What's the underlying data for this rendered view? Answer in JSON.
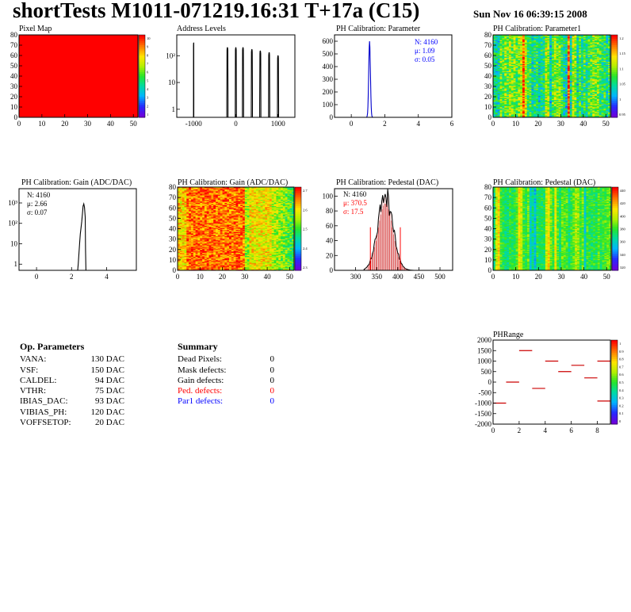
{
  "header": {
    "title": "shortTests M1011-071219.16:31 T+17a (C15)",
    "date": "Sun Nov 16 06:39:15 2008"
  },
  "chart_data": [
    {
      "id": "pixel_map",
      "type": "heatmap",
      "title": "Pixel Map",
      "xlim": [
        0,
        52
      ],
      "ylim": [
        0,
        80
      ],
      "x_ticks": [
        "0",
        "10",
        "20",
        "30",
        "40",
        "50"
      ],
      "y_ticks": [
        "0",
        "10",
        "20",
        "30",
        "40",
        "50",
        "60",
        "70",
        "80"
      ],
      "z_range": [
        0,
        10
      ],
      "z_ticks": [
        "10",
        "9",
        "8",
        "7",
        "6",
        "5",
        "4",
        "3",
        "2",
        "1"
      ],
      "values_note_uniform": 10
    },
    {
      "id": "address_levels",
      "type": "line",
      "title": "Address Levels",
      "yscale": "log",
      "x_ticks": [
        "-1000",
        "0",
        "1000"
      ],
      "y_ticks": [
        "1",
        "10",
        "10²"
      ],
      "peaks": [
        {
          "x": -1000,
          "y": 300
        },
        {
          "x": -200,
          "y": 200
        },
        {
          "x": 0,
          "y": 200
        },
        {
          "x": 170,
          "y": 200
        },
        {
          "x": 380,
          "y": 170
        },
        {
          "x": 580,
          "y": 150
        },
        {
          "x": 790,
          "y": 130
        },
        {
          "x": 1000,
          "y": 100
        }
      ]
    },
    {
      "id": "ph_cal_param",
      "type": "bar",
      "title": "PH Calibration: Parameter",
      "xlim": [
        -1,
        6
      ],
      "ylim": [
        0,
        650
      ],
      "x_ticks": [
        "0",
        "2",
        "4",
        "6"
      ],
      "y_ticks": [
        "0",
        "100",
        "200",
        "300",
        "400",
        "500",
        "600"
      ],
      "stats": [
        "N: 4160",
        "μ: 1.09",
        "σ: 0.05"
      ]
    },
    {
      "id": "ph_cal_param1",
      "type": "heatmap",
      "title": "PH Calibration: Parameter1",
      "xlim": [
        0,
        52
      ],
      "ylim": [
        0,
        80
      ],
      "x_ticks": [
        "0",
        "10",
        "20",
        "30",
        "40",
        "50"
      ],
      "y_ticks": [
        "0",
        "10",
        "20",
        "30",
        "40",
        "50",
        "60",
        "70",
        "80"
      ],
      "z_ticks": [
        "1.2",
        "1.15",
        "1.1",
        "1.05",
        "1",
        "0.95"
      ]
    },
    {
      "id": "gain_hist",
      "type": "bar",
      "title": "PH Calibration: Gain (ADC/DAC)",
      "yscale": "log",
      "x_ticks": [
        "0",
        "2",
        "4"
      ],
      "y_ticks": [
        "1",
        "10",
        "10²",
        "10³"
      ],
      "stats": [
        "N: 4160",
        "μ: 2.66",
        "σ: 0.07"
      ]
    },
    {
      "id": "gain_map",
      "type": "heatmap",
      "title": "PH Calibration: Gain (ADC/DAC)",
      "xlim": [
        0,
        52
      ],
      "ylim": [
        0,
        80
      ],
      "x_ticks": [
        "0",
        "10",
        "20",
        "30",
        "40",
        "50"
      ],
      "y_ticks": [
        "0",
        "10",
        "20",
        "30",
        "40",
        "50",
        "60",
        "70",
        "80"
      ],
      "z_ticks": [
        "2.7",
        "2.6",
        "2.5",
        "2.4",
        "2.3"
      ]
    },
    {
      "id": "pedestal_hist",
      "type": "bar",
      "title": "PH Calibration: Pedestal (DAC)",
      "xlim": [
        250,
        530
      ],
      "ylim": [
        0,
        110
      ],
      "x_ticks": [
        "300",
        "350",
        "400",
        "450",
        "500"
      ],
      "y_ticks": [
        "0",
        "20",
        "40",
        "60",
        "80",
        "100"
      ],
      "stats": [
        "N: 4160",
        "μ: 370.5",
        "σ: 17.5"
      ]
    },
    {
      "id": "pedestal_map",
      "type": "heatmap",
      "title": "PH Calibration: Pedestal (DAC)",
      "xlim": [
        0,
        52
      ],
      "ylim": [
        0,
        80
      ],
      "x_ticks": [
        "0",
        "10",
        "20",
        "30",
        "40",
        "50"
      ],
      "y_ticks": [
        "0",
        "10",
        "20",
        "30",
        "40",
        "50",
        "60",
        "70",
        "80"
      ],
      "z_ticks": [
        "440",
        "420",
        "400",
        "380",
        "360",
        "340",
        "320"
      ]
    },
    {
      "id": "ph_range",
      "type": "scatter",
      "title": "PHRange",
      "xlim": [
        0,
        9
      ],
      "ylim": [
        -2000,
        2000
      ],
      "x_ticks": [
        "0",
        "2",
        "4",
        "6",
        "8"
      ],
      "y_ticks": [
        "2000",
        "1500",
        "1000",
        "500",
        "0",
        "-500",
        "-1000",
        "-1500",
        "-2000"
      ],
      "z_ticks": [
        "1",
        "0.9",
        "0.8",
        "0.7",
        "0.6",
        "0.5",
        "0.4",
        "0.3",
        "0.2",
        "0.1",
        "0"
      ],
      "points": [
        {
          "x": 0.5,
          "y": -1000
        },
        {
          "x": 1.5,
          "y": 0
        },
        {
          "x": 2.5,
          "y": 1500
        },
        {
          "x": 3.5,
          "y": -300
        },
        {
          "x": 4.5,
          "y": 1000
        },
        {
          "x": 5.5,
          "y": 500
        },
        {
          "x": 6.5,
          "y": 800
        },
        {
          "x": 7.5,
          "y": 200
        },
        {
          "x": 8.5,
          "y": -900
        },
        {
          "x": 8.5,
          "y": 1000
        }
      ]
    }
  ],
  "op_params": {
    "heading": "Op. Parameters",
    "rows": [
      {
        "name": "VANA:",
        "value": "130 DAC"
      },
      {
        "name": "VSF:",
        "value": "150 DAC"
      },
      {
        "name": "CALDEL:",
        "value": "94 DAC"
      },
      {
        "name": "VTHR:",
        "value": "75 DAC"
      },
      {
        "name": "IBIAS_DAC:",
        "value": "93 DAC"
      },
      {
        "name": "VIBIAS_PH:",
        "value": "120 DAC"
      },
      {
        "name": "VOFFSETOP:",
        "value": "20 DAC"
      }
    ]
  },
  "summary": {
    "heading": "Summary",
    "rows": [
      {
        "name": "Dead Pixels:",
        "value": "0",
        "color": "#000000"
      },
      {
        "name": "Mask defects:",
        "value": "0",
        "color": "#000000"
      },
      {
        "name": "Gain defects:",
        "value": "0",
        "color": "#000000"
      },
      {
        "name": "Ped. defects:",
        "value": "0",
        "color": "#ff0000"
      },
      {
        "name": "Par1 defects:",
        "value": "0",
        "color": "#0000ff"
      }
    ]
  }
}
